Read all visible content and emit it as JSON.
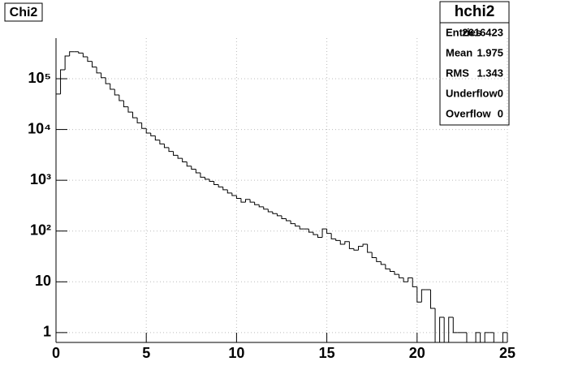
{
  "chart_data": {
    "type": "histogram",
    "title": "Chi2",
    "color": "#000000",
    "log_y": true,
    "grid": true,
    "bins": [
      0,
      0.25,
      0.5,
      0.75,
      1,
      1.25,
      1.5,
      1.75,
      2,
      2.25,
      2.5,
      2.75,
      3,
      3.25,
      3.5,
      3.75,
      4,
      4.25,
      4.5,
      4.75,
      5,
      5.25,
      5.5,
      5.75,
      6,
      6.25,
      6.5,
      6.75,
      7,
      7.25,
      7.5,
      7.75,
      8,
      8.25,
      8.5,
      8.75,
      9,
      9.25,
      9.5,
      9.75,
      10,
      10.25,
      10.5,
      10.75,
      11,
      11.25,
      11.5,
      11.75,
      12,
      12.25,
      12.5,
      12.75,
      13,
      13.25,
      13.5,
      13.75,
      14,
      14.25,
      14.5,
      14.75,
      15,
      15.25,
      15.5,
      15.75,
      16,
      16.25,
      16.5,
      16.75,
      17,
      17.25,
      17.5,
      17.75,
      18,
      18.25,
      18.5,
      18.75,
      19,
      19.25,
      19.5,
      19.75,
      20,
      20.25,
      20.5,
      20.75,
      21,
      21.25,
      21.5,
      21.75,
      22,
      22.25,
      22.5,
      22.75,
      23,
      23.25,
      23.5,
      23.75,
      24,
      24.25,
      24.5,
      24.75,
      25
    ],
    "values": [
      50000,
      150000,
      280000,
      340000,
      340000,
      320000,
      270000,
      220000,
      170000,
      130000,
      105000,
      80000,
      62000,
      48000,
      37000,
      28000,
      22000,
      17000,
      13500,
      10500,
      8500,
      7500,
      6200,
      5200,
      4400,
      3700,
      3100,
      2700,
      2300,
      1900,
      1650,
      1400,
      1150,
      1050,
      950,
      820,
      740,
      650,
      560,
      500,
      440,
      370,
      420,
      370,
      330,
      300,
      270,
      240,
      220,
      200,
      175,
      160,
      140,
      125,
      110,
      110,
      95,
      85,
      75,
      110,
      90,
      70,
      65,
      55,
      62,
      45,
      42,
      50,
      55,
      38,
      30,
      25,
      22,
      18,
      16,
      14,
      12,
      10,
      12,
      8,
      4,
      7,
      7,
      3,
      0,
      2,
      0,
      2,
      1,
      1,
      1,
      0,
      0,
      1,
      0,
      1,
      1,
      0,
      0,
      1
    ],
    "xlim": [
      0,
      25
    ],
    "ylim": [
      0.64,
      630000
    ],
    "xticks": [
      0,
      5,
      10,
      15,
      20,
      25
    ],
    "yticks": [
      1,
      10,
      {
        "value": 100,
        "label": "10²"
      },
      {
        "value": 1000,
        "label": "10³"
      },
      {
        "value": 10000,
        "label": "10⁴"
      },
      {
        "value": 100000,
        "label": "10⁵"
      }
    ],
    "stats": {
      "title": "hchi2",
      "rows": [
        [
          "Entries",
          "2616423"
        ],
        [
          "Mean",
          "1.975"
        ],
        [
          "RMS",
          "1.343"
        ],
        [
          "Underflow",
          "0"
        ],
        [
          "Overflow",
          "0"
        ]
      ]
    }
  }
}
